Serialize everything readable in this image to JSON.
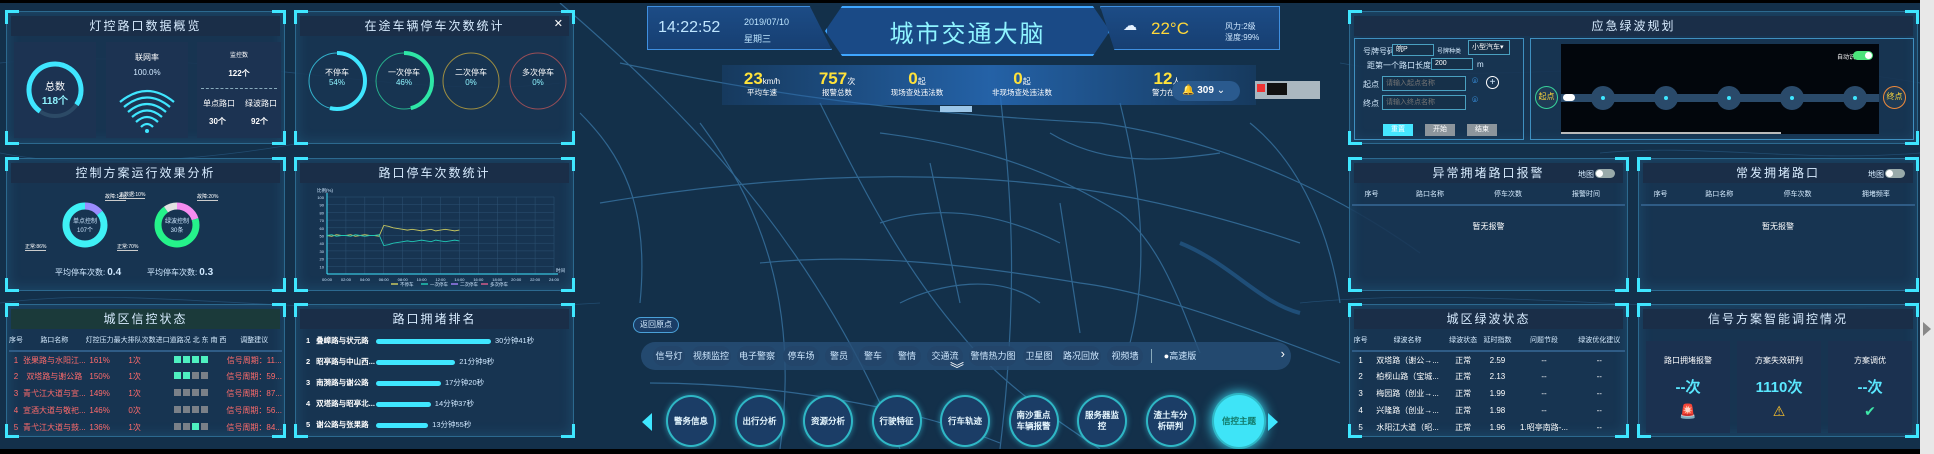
{
  "header": {
    "time": "14:22:52",
    "date": "2019/07/10",
    "weekday": "星期三",
    "title": "城市交通大脑",
    "weather_icon": "rain-cloud-icon",
    "temperature": "22°C",
    "wind_label": "风力:",
    "wind_value": "2级",
    "humidity_label": "湿度:",
    "humidity_value": "99%"
  },
  "stats": [
    {
      "value": "23",
      "unit": "km/h",
      "label": "平均车速"
    },
    {
      "value": "757",
      "unit": "次",
      "label": "报警总数"
    },
    {
      "value": "0",
      "unit": "起",
      "label": "现场查处违法数"
    },
    {
      "value": "0",
      "unit": "起",
      "label": "非现场查处违法数"
    },
    {
      "value": "12",
      "unit": "人",
      "label": "警力在岗"
    }
  ],
  "alerts": {
    "icon": "bell-icon",
    "count": "309"
  },
  "overview": {
    "title": "灯控路口数据概览",
    "total_label": "总数",
    "total_value": "118个",
    "network_label": "联网率",
    "network_value": "100.0%",
    "monitor_label": "监控数",
    "monitor_value": "122个",
    "single_label": "单点路口",
    "single_value": "30个",
    "green_label": "绿波路口",
    "green_value": "92个"
  },
  "stops": {
    "title": "在途车辆停车次数统计",
    "close_icon": "close-icon",
    "items": [
      {
        "label": "不停车",
        "value": "54%",
        "percent": 54,
        "color": "#3fe6ff"
      },
      {
        "label": "一次停车",
        "value": "46%",
        "percent": 46,
        "color": "#2ee6a6"
      },
      {
        "label": "二次停车",
        "value": "0%",
        "percent": 0,
        "color": "#d8b53a"
      },
      {
        "label": "多次停车",
        "value": "0%",
        "percent": 0,
        "color": "#d25a5a"
      }
    ]
  },
  "control": {
    "title": "控制方案运行效果分析",
    "donuts": [
      {
        "center_label": "单点控制",
        "center_value": "107个",
        "avg_label": "平均停车次数:",
        "avg_value": "0.4",
        "slices": [
          {
            "label": "故障:14%",
            "value": 14,
            "color": "#9b8cff"
          },
          {
            "label": "正常:86%",
            "value": 86,
            "color": "#3ff0f5"
          }
        ]
      },
      {
        "center_label": "绿波控制",
        "center_value": "30条",
        "avg_label": "平均停车次数:",
        "avg_value": "0.3",
        "slices": [
          {
            "label": "故障:20%",
            "value": 20,
            "color": "#f58cf0"
          },
          {
            "label": "正常:70%",
            "value": 70,
            "color": "#25f28a"
          },
          {
            "label": "无数据:10%",
            "value": 10,
            "color": "#e2e2e2"
          }
        ]
      }
    ]
  },
  "chart_panel": {
    "title": "路口停车次数统计"
  },
  "chart_data": {
    "type": "line",
    "ylabel": "比例(%)",
    "xlabel": "时间",
    "ylim": [
      0,
      100
    ],
    "yticks": [
      10,
      20,
      30,
      40,
      50,
      60,
      70,
      80,
      90,
      100
    ],
    "xticks": [
      "00:00",
      "02:00",
      "04:00",
      "06:00",
      "08:00",
      "10:00",
      "12:00",
      "14:00",
      "16:00",
      "18:00",
      "20:00",
      "22:00",
      "24:00"
    ],
    "x_start": "00:00",
    "x_step_minutes": 30,
    "grid": true,
    "legend": "bottom",
    "series": [
      {
        "name": "不停车",
        "color": "#c8c860",
        "values": [
          50,
          49,
          51,
          50,
          50,
          51,
          49,
          50,
          51,
          50,
          50,
          49,
          63,
          62,
          60,
          59,
          58,
          57,
          58,
          57,
          56,
          57,
          58,
          56,
          57,
          58,
          57,
          56,
          57
        ]
      },
      {
        "name": "一次停车",
        "color": "#21c7b5",
        "values": [
          50,
          51,
          49,
          50,
          50,
          49,
          51,
          50,
          49,
          50,
          50,
          51,
          37,
          38,
          40,
          41,
          42,
          43,
          42,
          43,
          44,
          43,
          42,
          44,
          43,
          42,
          43,
          44,
          43
        ]
      },
      {
        "name": "二次停车",
        "color": "#9b7cf0",
        "values": []
      },
      {
        "name": "多次停车",
        "color": "#d25a8a",
        "values": []
      }
    ]
  },
  "signal_table": {
    "title": "城区信控状态",
    "headers": [
      "序号",
      "路口名称",
      "灯控压力",
      "最大排队次数",
      "进口道路况 北 东 南 西",
      "调整建议"
    ],
    "rows": [
      {
        "no": "1",
        "name": "张果路与水阳江...",
        "pressure": "161%",
        "queue": "1次",
        "lanes": [
          1,
          1,
          1,
          1
        ],
        "advice": "信号周期：11..."
      },
      {
        "no": "2",
        "name": "双塔路与谢公路",
        "pressure": "150%",
        "queue": "1次",
        "lanes": [
          1,
          1,
          0,
          0
        ],
        "advice": "信号周期：59..."
      },
      {
        "no": "3",
        "name": "青弋江大道与宣...",
        "pressure": "149%",
        "queue": "1次",
        "lanes": [
          0,
          0,
          0,
          0
        ],
        "advice": "信号周期：87..."
      },
      {
        "no": "4",
        "name": "宣酒大道与敬祀...",
        "pressure": "146%",
        "queue": "0次",
        "lanes": [
          0,
          0,
          0,
          0
        ],
        "advice": "信号周期：56..."
      },
      {
        "no": "5",
        "name": "青弋江大道与鼓...",
        "pressure": "136%",
        "queue": "1次",
        "lanes": [
          0,
          0,
          1,
          0
        ],
        "advice": "信号周期：84..."
      }
    ]
  },
  "ranking": {
    "title": "路口拥堵排名",
    "rows": [
      {
        "no": "1",
        "name": "叠嶂路与状元路",
        "duration": "30分钟41秒",
        "seconds": 1841
      },
      {
        "no": "2",
        "name": "昭亭路与中山西...",
        "duration": "21分钟9秒",
        "seconds": 1269
      },
      {
        "no": "3",
        "name": "南漪路与谢公路",
        "duration": "17分钟20秒",
        "seconds": 1040
      },
      {
        "no": "4",
        "name": "双塔路与昭亭北...",
        "duration": "14分钟37秒",
        "seconds": 877
      },
      {
        "no": "5",
        "name": "谢公路与张果路",
        "duration": "13分钟55秒",
        "seconds": 835
      }
    ]
  },
  "map": {
    "return_label": "返回原点",
    "layers": [
      "信号灯",
      "视频监控",
      "电子警察",
      "停车场",
      "警员",
      "警车",
      "警情",
      "交通流",
      "警情热力图",
      "卫星图",
      "路况回放",
      "视频墙"
    ],
    "highway_label": "高速版",
    "themes": [
      "警务信息",
      "出行分析",
      "资源分析",
      "行驶特征",
      "行车轨迹",
      "南沙重点车辆报警",
      "服务器监控",
      "渣土车分析研判",
      "信控主题"
    ],
    "active_theme": "信控主题"
  },
  "route": {
    "title": "应急绿波规划",
    "plate_label": "号牌号码",
    "plate_value": "皖P",
    "type_label": "号牌种类",
    "type_value": "小型汽车",
    "distance_label": "距第一个路口长度",
    "distance_value": "200",
    "distance_unit": "m",
    "start_label": "起点",
    "start_placeholder": "请输入起点名称",
    "end_label": "终点",
    "end_placeholder": "请输入终点名称",
    "buttons": [
      "重置",
      "开始",
      "结束"
    ],
    "auto_label": "自动识别",
    "auto_on": true,
    "start_node": "起点",
    "end_node": "终点"
  },
  "abnormal": {
    "title": "异常拥堵路口报警",
    "map_label": "地图",
    "headers": [
      "序号",
      "路口名称",
      "停车次数",
      "报警时间"
    ],
    "empty": "暂无报警"
  },
  "frequent": {
    "title": "常发拥堵路口",
    "map_label": "地图",
    "headers": [
      "序号",
      "路口名称",
      "停车次数",
      "拥堵频率"
    ],
    "empty": "暂无报警"
  },
  "greenwave": {
    "title": "城区绿波状态",
    "headers": [
      "序号",
      "绿波名称",
      "绿波状态",
      "延时指数",
      "问题节段",
      "绿波优化建议"
    ],
    "rows": [
      {
        "no": "1",
        "name": "双塔路（谢公→...",
        "status": "正常",
        "delay": "2.59",
        "issue": "--",
        "advice": "--"
      },
      {
        "no": "2",
        "name": "柏枧山路（宝城...",
        "status": "正常",
        "delay": "2.13",
        "issue": "--",
        "advice": "--"
      },
      {
        "no": "3",
        "name": "梅园路（创业→...",
        "status": "正常",
        "delay": "1.99",
        "issue": "--",
        "advice": "--"
      },
      {
        "no": "4",
        "name": "兴隆路（创业→...",
        "status": "正常",
        "delay": "1.98",
        "issue": "--",
        "advice": "--"
      },
      {
        "no": "5",
        "name": "水阳江大道（昭...",
        "status": "正常",
        "delay": "1.96",
        "issue": "1.昭亭南路-...",
        "advice": "--"
      }
    ]
  },
  "signal_plan": {
    "title": "信号方案智能调控情况",
    "cards": [
      {
        "label": "路口拥堵报警",
        "value": "--次",
        "icon": "alarm-light-icon"
      },
      {
        "label": "方案失效研判",
        "value": "1110次",
        "icon": "warning-icon"
      },
      {
        "label": "方案调优",
        "value": "--次",
        "icon": "check-circle-icon"
      }
    ]
  }
}
